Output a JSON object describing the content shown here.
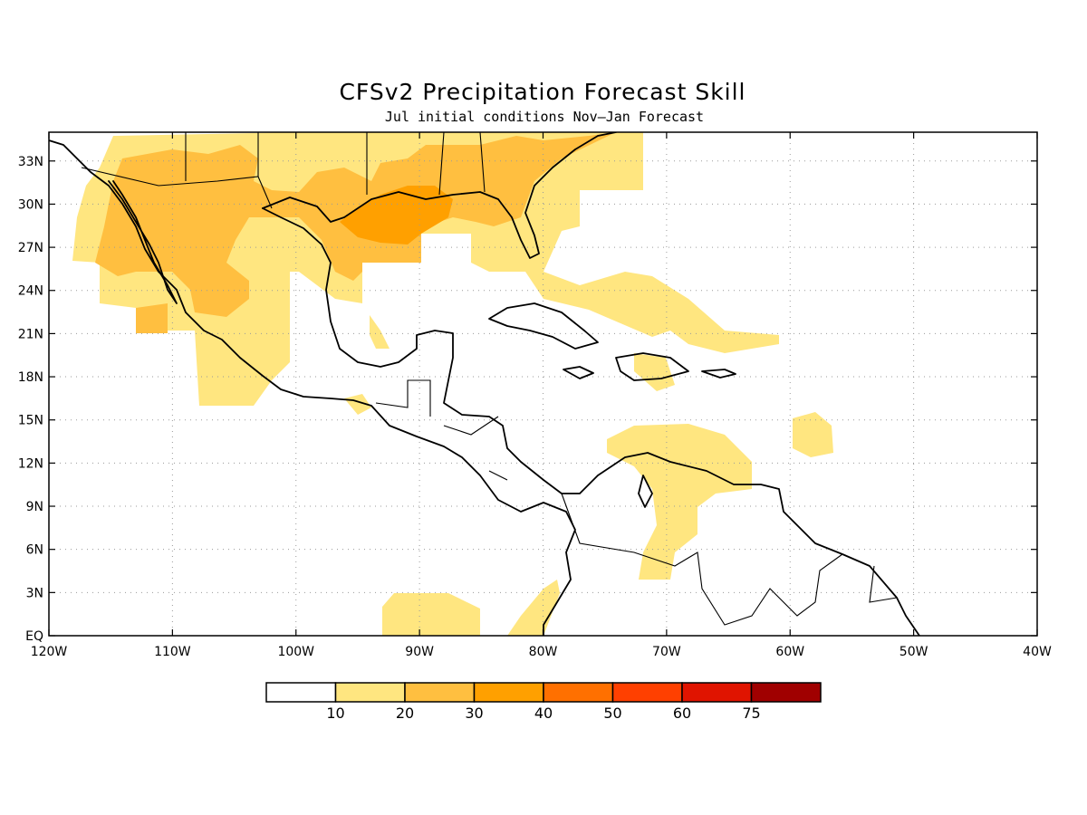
{
  "title": "CFSv2 Precipitation Forecast Skill",
  "subtitle": "Jul initial conditions   Nov–Jan Forecast",
  "colors": {
    "c10": "#ffe680",
    "c20": "#ffbf40",
    "c30": "#ffa000",
    "c40": "#ff7000",
    "c50": "#ff4000",
    "c60": "#e01400",
    "c75": "#a00000"
  },
  "map": {
    "lon_range": [
      -120,
      -40
    ],
    "lat_range": [
      0,
      35
    ],
    "x_ticks": [
      {
        "lon": -120,
        "label": "120W"
      },
      {
        "lon": -110,
        "label": "110W"
      },
      {
        "lon": -100,
        "label": "100W"
      },
      {
        "lon": -90,
        "label": "90W"
      },
      {
        "lon": -80,
        "label": "80W"
      },
      {
        "lon": -70,
        "label": "70W"
      },
      {
        "lon": -60,
        "label": "60W"
      },
      {
        "lon": -50,
        "label": "50W"
      },
      {
        "lon": -40,
        "label": "40W"
      }
    ],
    "y_ticks": [
      {
        "lat": 0,
        "label": "EQ"
      },
      {
        "lat": 3,
        "label": "3N"
      },
      {
        "lat": 6,
        "label": "6N"
      },
      {
        "lat": 9,
        "label": "9N"
      },
      {
        "lat": 12,
        "label": "12N"
      },
      {
        "lat": 15,
        "label": "15N"
      },
      {
        "lat": 18,
        "label": "18N"
      },
      {
        "lat": 21,
        "label": "21N"
      },
      {
        "lat": 24,
        "label": "24N"
      },
      {
        "lat": 27,
        "label": "27N"
      },
      {
        "lat": 30,
        "label": "30N"
      },
      {
        "lat": 33,
        "label": "33N"
      }
    ]
  },
  "colorbar": {
    "labels": [
      "10",
      "20",
      "30",
      "40",
      "50",
      "60",
      "75"
    ]
  }
}
